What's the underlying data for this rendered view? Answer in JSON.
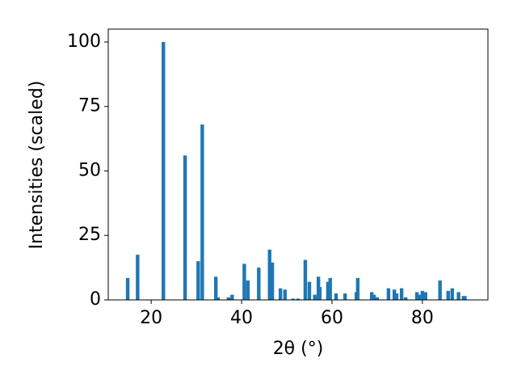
{
  "chart_data": {
    "type": "bar",
    "x_label": "2θ (°)",
    "y_label": "Intensities (scaled)",
    "x": [
      14.8,
      17.0,
      22.7,
      27.5,
      30.4,
      31.3,
      34.3,
      34.8,
      37.1,
      37.9,
      40.6,
      41.4,
      43.8,
      46.2,
      46.8,
      48.6,
      49.6,
      51.4,
      52.5,
      54.1,
      55.0,
      56.2,
      57.0,
      57.3,
      59.1,
      59.6,
      60.9,
      62.9,
      65.4,
      65.7,
      68.8,
      69.3,
      70.0,
      72.5,
      73.8,
      74.3,
      75.4,
      76.3,
      78.8,
      79.3,
      80.0,
      80.7,
      83.9,
      85.7,
      86.6,
      88.0,
      89.1,
      89.4
    ],
    "values": [
      8.5,
      17.5,
      100,
      56,
      15,
      68,
      9,
      1,
      1,
      2,
      14,
      7.5,
      12.5,
      19.5,
      14.5,
      4.5,
      4,
      0.5,
      0.5,
      15.5,
      7,
      2,
      9,
      5,
      7,
      8.5,
      2.5,
      2.5,
      3,
      8.5,
      3,
      2,
      1,
      4.5,
      4,
      2.5,
      4.5,
      1,
      3,
      2,
      3.5,
      3,
      7.5,
      3.5,
      4.5,
      3,
      1.5,
      1.5
    ],
    "color": "#1f77b4",
    "xlim": [
      10.5,
      94.5
    ],
    "xticks": [
      20,
      40,
      60,
      80
    ],
    "ylim": [
      0,
      105
    ],
    "yticks": [
      0,
      25,
      50,
      75,
      100
    ]
  }
}
